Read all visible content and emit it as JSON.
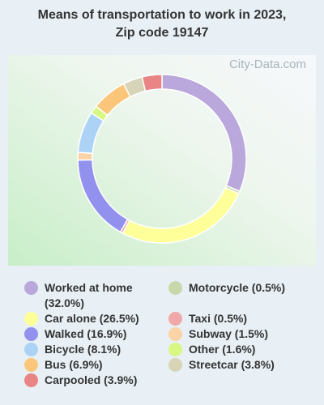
{
  "chart_data": {
    "type": "donut",
    "title": "Means of transportation to work in 2023, Zip code 19147",
    "watermark": "City-Data.com",
    "categories": [
      "Worked at home (32.0%)",
      "Car alone (26.5%)",
      "Walked (16.9%)",
      "Bicycle (8.1%)",
      "Bus (6.9%)",
      "Carpooled (3.9%)",
      "Motorcycle (0.5%)",
      "Taxi (0.5%)",
      "Subway (1.5%)",
      "Other (1.6%)",
      "Streetcar (3.8%)"
    ],
    "values": [
      32.0,
      26.5,
      16.9,
      8.1,
      6.9,
      3.9,
      0.5,
      0.5,
      1.5,
      1.6,
      3.8
    ],
    "colors": [
      "#baa8dc",
      "#ffff99",
      "#9292ee",
      "#acd2f6",
      "#fcc67a",
      "#ea8585",
      "#c8d8aa",
      "#f0a8a8",
      "#fad3a6",
      "#d8f883",
      "#d8d4b8"
    ]
  }
}
